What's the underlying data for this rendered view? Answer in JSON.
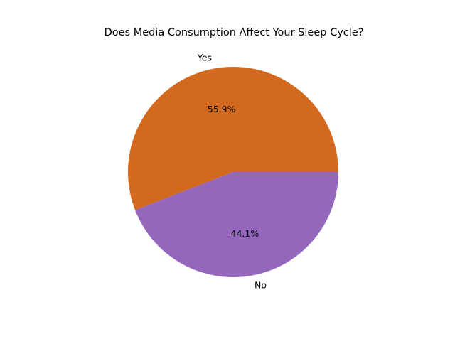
{
  "chart_data": {
    "type": "pie",
    "title": "Does Media Consumption Affect Your Sleep Cycle?",
    "categories": [
      "Yes",
      "No"
    ],
    "values": [
      55.9,
      44.1
    ],
    "percent_labels": [
      "55.9%",
      "44.1%"
    ],
    "colors": [
      "#d2691e",
      "#9467bd"
    ],
    "start_angle_deg": 0,
    "direction": "counterclockwise",
    "legend": "none"
  }
}
